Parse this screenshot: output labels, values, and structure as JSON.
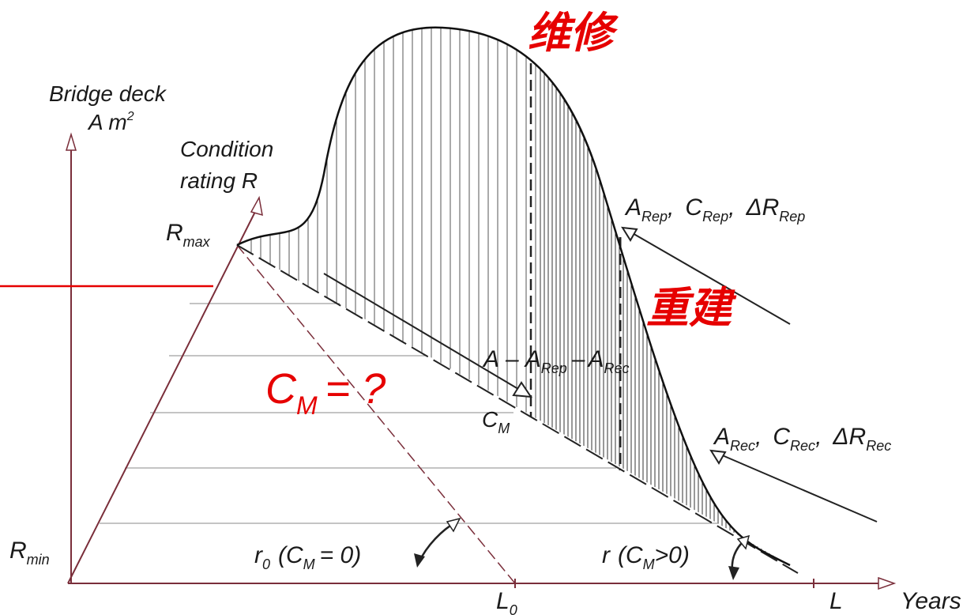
{
  "axes": {
    "vertical_title_line1": "Bridge deck",
    "vertical_title_line2": "A m",
    "vertical_title_sup": "2",
    "condition_title_line1": "Condition",
    "condition_title_line2": "rating R",
    "x_axis_label": "Years"
  },
  "levels": {
    "r_max": "R",
    "r_max_sub": "max",
    "r_min": "R",
    "r_min_sub": "min"
  },
  "points": {
    "l0": "L",
    "l0_sub": "0",
    "l": "L",
    "cm": "C",
    "cm_sub": "M"
  },
  "annotations": {
    "repair": {
      "a": "A",
      "a_sub": "Rep",
      "c": "C",
      "c_sub": "Rep",
      "dr": "ΔR",
      "dr_sub": "Rep",
      "sep": ","
    },
    "reconstruction": {
      "a": "A",
      "a_sub": "Rec",
      "c": "C",
      "c_sub": "Rec",
      "dr": "ΔR",
      "dr_sub": "Rec",
      "sep": ","
    },
    "remaining": {
      "a": "A",
      "minus1": "–",
      "a_rep": "A",
      "a_rep_sub": "Rep",
      "minus2": "–",
      "a_rec": "A",
      "a_rec_sub": "Rec"
    },
    "r0": {
      "r": "r",
      "sub": "0",
      "text": "(C",
      "cm_sub": "M",
      "tail": "= 0)"
    },
    "r": {
      "r": "r",
      "text": "(C",
      "cm_sub": "M",
      "tail": ">0)"
    }
  },
  "overlay": {
    "maintenance": "维修",
    "reconstruction": "重建",
    "cm_question_c": "C",
    "cm_question_sub": "M",
    "cm_question_rest": "= ?",
    "color": "#e60000"
  }
}
